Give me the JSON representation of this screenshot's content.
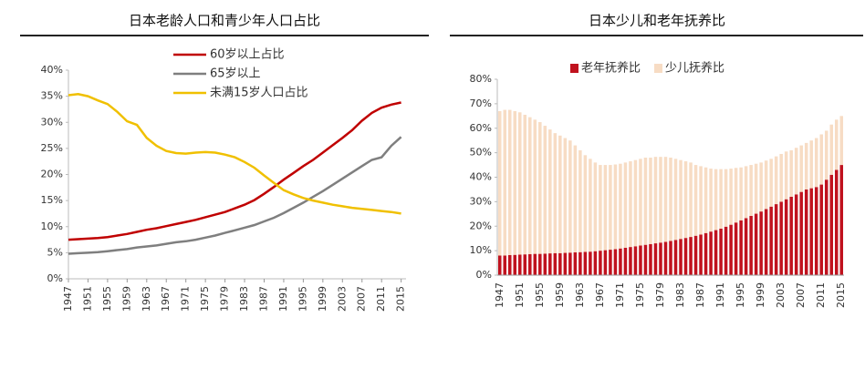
{
  "chart_data": [
    {
      "type": "line",
      "title": "日本老龄人口和青少年人口占比",
      "x": [
        1947,
        1949,
        1951,
        1953,
        1955,
        1957,
        1959,
        1961,
        1963,
        1965,
        1967,
        1969,
        1971,
        1973,
        1975,
        1977,
        1979,
        1981,
        1983,
        1985,
        1987,
        1989,
        1991,
        1993,
        1995,
        1997,
        1999,
        2001,
        2003,
        2005,
        2007,
        2009,
        2011,
        2013,
        2015
      ],
      "series": [
        {
          "name": "60岁以上占比",
          "color": "#c00000",
          "values": [
            7.5,
            7.6,
            7.7,
            7.8,
            8,
            8.3,
            8.6,
            9,
            9.4,
            9.7,
            10.1,
            10.5,
            10.9,
            11.3,
            11.8,
            12.3,
            12.8,
            13.5,
            14.2,
            15.1,
            16.3,
            17.6,
            19,
            20.3,
            21.6,
            22.8,
            24.2,
            25.6,
            27,
            28.5,
            30.3,
            31.8,
            32.8,
            33.4,
            33.8
          ]
        },
        {
          "name": "65岁以上",
          "color": "#7f7f7f",
          "values": [
            4.8,
            4.9,
            5,
            5.1,
            5.3,
            5.5,
            5.7,
            6,
            6.2,
            6.4,
            6.7,
            7,
            7.2,
            7.5,
            7.9,
            8.3,
            8.8,
            9.3,
            9.8,
            10.3,
            11,
            11.7,
            12.6,
            13.6,
            14.6,
            15.7,
            16.8,
            18,
            19.2,
            20.4,
            21.6,
            22.8,
            23.3,
            25.5,
            27.2
          ]
        },
        {
          "name": "未满15岁人口占比",
          "color": "#f0c000",
          "values": [
            35.2,
            35.4,
            35,
            34.2,
            33.5,
            32,
            30.2,
            29.5,
            27,
            25.5,
            24.5,
            24.1,
            24,
            24.2,
            24.3,
            24.2,
            23.8,
            23.3,
            22.4,
            21.3,
            19.8,
            18.4,
            17,
            16.2,
            15.5,
            15,
            14.6,
            14.2,
            13.9,
            13.6,
            13.4,
            13.2,
            13,
            12.8,
            12.5
          ]
        }
      ],
      "xlim": [
        1947,
        2016
      ],
      "xticks": [
        1947,
        1951,
        1955,
        1959,
        1963,
        1967,
        1971,
        1975,
        1979,
        1983,
        1987,
        1991,
        1995,
        1999,
        2003,
        2007,
        2011,
        2015
      ],
      "ylim": [
        0,
        40
      ],
      "yticks": [
        {
          "value": 0,
          "label": "0%"
        },
        {
          "value": 5,
          "label": "5%"
        },
        {
          "value": 10,
          "label": "10%"
        },
        {
          "value": 15,
          "label": "15%"
        },
        {
          "value": 20,
          "label": "20%"
        },
        {
          "value": 25,
          "label": "25%"
        },
        {
          "value": 30,
          "label": "30%"
        },
        {
          "value": 35,
          "label": "35%"
        },
        {
          "value": 40,
          "label": "40%"
        }
      ]
    },
    {
      "type": "bar",
      "stacked": true,
      "title": "日本少儿和老年抚养比",
      "categories": [
        "1947",
        null,
        null,
        null,
        "1951",
        null,
        null,
        null,
        "1955",
        null,
        null,
        null,
        "1959",
        null,
        null,
        null,
        "1963",
        null,
        null,
        null,
        "1967",
        null,
        null,
        null,
        "1971",
        null,
        null,
        null,
        "1975",
        null,
        null,
        null,
        "1979",
        null,
        null,
        null,
        "1983",
        null,
        null,
        null,
        "1987",
        null,
        null,
        null,
        "1991",
        null,
        null,
        null,
        "1995",
        null,
        null,
        null,
        "1999",
        null,
        null,
        null,
        "2003",
        null,
        null,
        null,
        "2007",
        null,
        null,
        null,
        "2011",
        null,
        null,
        null,
        "2015"
      ],
      "series": [
        {
          "name": "老年抚养比",
          "color": "#c0121e",
          "values": [
            8,
            8,
            8.2,
            8.3,
            8.4,
            8.5,
            8.6,
            8.7,
            8.7,
            8.8,
            8.9,
            9,
            9,
            9.1,
            9.2,
            9.3,
            9.4,
            9.5,
            9.6,
            9.8,
            10,
            10.2,
            10.4,
            10.6,
            10.9,
            11.2,
            11.5,
            11.8,
            12.1,
            12.4,
            12.7,
            13,
            13.3,
            13.6,
            14,
            14.4,
            14.8,
            15.2,
            15.6,
            16.1,
            16.6,
            17.2,
            17.8,
            18.4,
            19,
            19.8,
            20.6,
            21.5,
            22.4,
            23.3,
            24.2,
            25.1,
            26,
            27,
            28,
            29,
            30,
            31,
            32,
            33,
            34,
            35,
            35.5,
            36,
            37,
            39,
            41,
            43,
            45
          ]
        },
        {
          "name": "少儿抚养比",
          "color": "#f7dcc4",
          "values": [
            59,
            59.5,
            59.3,
            58.7,
            58.1,
            57,
            55.9,
            54.8,
            53.8,
            52.2,
            50.6,
            49,
            48,
            46.9,
            45.8,
            43.7,
            41.6,
            39.5,
            37.9,
            36.2,
            35,
            34.8,
            34.6,
            34.6,
            34.6,
            34.8,
            35,
            35.2,
            35.4,
            35.6,
            35.3,
            35.3,
            35,
            34.7,
            34,
            33.1,
            32.2,
            31.3,
            30.4,
            28.9,
            27.9,
            26.8,
            25.7,
            24.9,
            24.3,
            23.5,
            22.9,
            22.3,
            21.6,
            21.2,
            20.8,
            20.4,
            20,
            19.8,
            19.5,
            19.5,
            19.5,
            19.5,
            19,
            19,
            19,
            19,
            19.5,
            20,
            20.5,
            20,
            20.5,
            20.5,
            20
          ]
        }
      ],
      "ylim": [
        0,
        80
      ],
      "yticks": [
        {
          "value": 0,
          "label": "0%"
        },
        {
          "value": 10,
          "label": "10%"
        },
        {
          "value": 20,
          "label": "20%"
        },
        {
          "value": 30,
          "label": "30%"
        },
        {
          "value": 40,
          "label": "40%"
        },
        {
          "value": 50,
          "label": "50%"
        },
        {
          "value": 60,
          "label": "60%"
        },
        {
          "value": 70,
          "label": "70%"
        },
        {
          "value": 80,
          "label": "80%"
        }
      ]
    }
  ]
}
